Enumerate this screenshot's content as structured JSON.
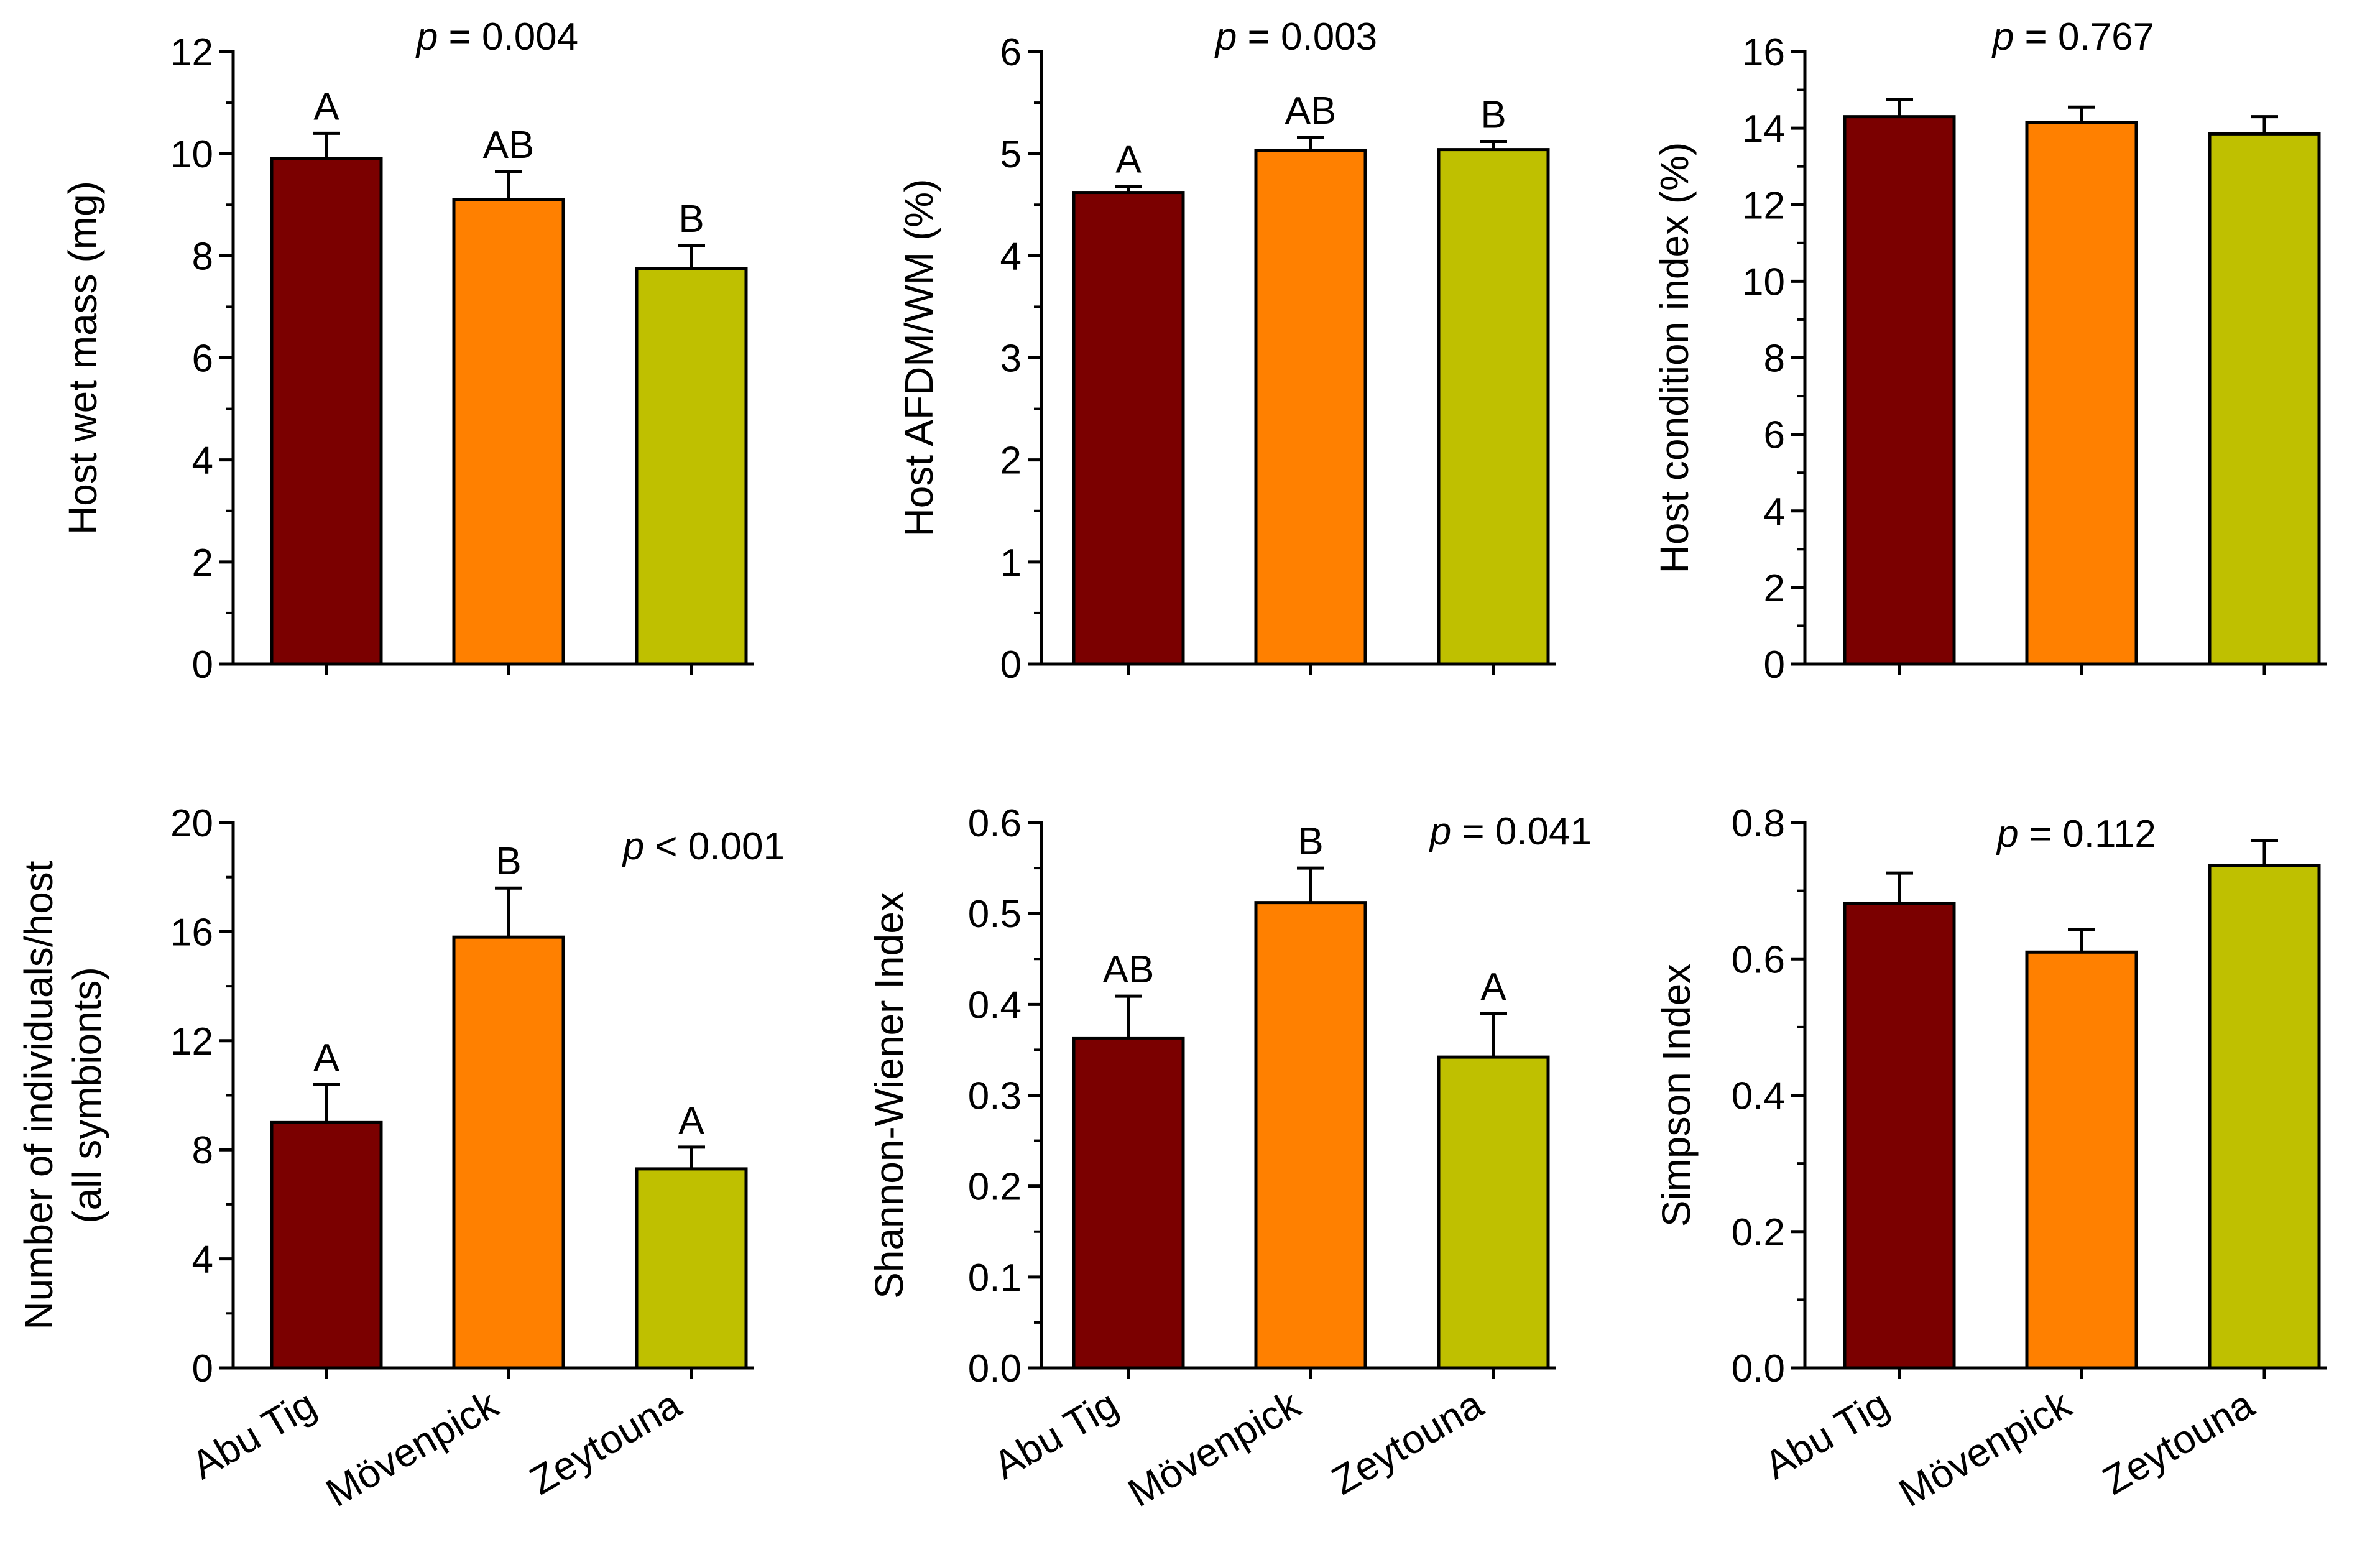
{
  "figure_title": "",
  "colors": {
    "Abu Tig": "#7b0000",
    "Mövenpick": "#ff8000",
    "Zeytouna": "#bfc000",
    "stroke": "#000000"
  },
  "chart_data": [
    {
      "type": "bar",
      "title": "",
      "categories": [
        "Abu Tig",
        "Mövenpick",
        "Zeytouna"
      ],
      "values": [
        9.9,
        9.1,
        7.75
      ],
      "errors": [
        0.5,
        0.55,
        0.45
      ],
      "letters": [
        "A",
        "AB",
        "B"
      ],
      "p_label": "p",
      "p_text": " = 0.004",
      "xlabel": "",
      "ylabel": [
        "Host wet mass (mg)"
      ],
      "ylim": [
        0,
        12
      ],
      "major_ticks": [
        0,
        2,
        4,
        6,
        8,
        10,
        12
      ],
      "minor_step": 1,
      "tick_labels": [
        "0",
        "2",
        "4",
        "6",
        "8",
        "10",
        "12"
      ],
      "show_category_labels": false
    },
    {
      "type": "bar",
      "title": "",
      "categories": [
        "Abu Tig",
        "Mövenpick",
        "Zeytouna"
      ],
      "values": [
        4.62,
        5.03,
        5.04
      ],
      "errors": [
        0.06,
        0.13,
        0.08
      ],
      "letters": [
        "A",
        "AB",
        "B"
      ],
      "p_label": "p",
      "p_text": " = 0.003",
      "xlabel": "",
      "ylabel": [
        "Host AFDM/WM (%)"
      ],
      "ylim": [
        0,
        6
      ],
      "major_ticks": [
        0,
        1,
        2,
        3,
        4,
        5,
        6
      ],
      "minor_step": 0.5,
      "tick_labels": [
        "0",
        "1",
        "2",
        "3",
        "4",
        "5",
        "6"
      ],
      "show_category_labels": false
    },
    {
      "type": "bar",
      "title": "",
      "categories": [
        "Abu Tig",
        "Mövenpick",
        "Zeytouna"
      ],
      "values": [
        14.3,
        14.15,
        13.85
      ],
      "errors": [
        0.45,
        0.4,
        0.45
      ],
      "letters": [
        "",
        "",
        ""
      ],
      "p_label": "p",
      "p_text": " = 0.767",
      "xlabel": "",
      "ylabel": [
        "Host condition index (%)"
      ],
      "ylim": [
        0,
        16
      ],
      "major_ticks": [
        0,
        2,
        4,
        6,
        8,
        10,
        12,
        14,
        16
      ],
      "minor_step": 1,
      "tick_labels": [
        "0",
        "2",
        "4",
        "6",
        "8",
        "10",
        "12",
        "14",
        "16"
      ],
      "show_category_labels": false
    },
    {
      "type": "bar",
      "title": "",
      "categories": [
        "Abu Tig",
        "Mövenpick",
        "Zeytouna"
      ],
      "values": [
        9.0,
        15.8,
        7.3
      ],
      "errors": [
        1.4,
        1.8,
        0.8
      ],
      "letters": [
        "A",
        "B",
        "A"
      ],
      "p_label": "p",
      "p_text": " < 0.001",
      "xlabel": "",
      "ylabel": [
        "Number of individuals/host",
        "(all symbionts)"
      ],
      "ylim": [
        0,
        20
      ],
      "major_ticks": [
        0,
        4,
        8,
        12,
        16,
        20
      ],
      "minor_step": 2,
      "tick_labels": [
        "0",
        "4",
        "8",
        "12",
        "16",
        "20"
      ],
      "show_category_labels": true
    },
    {
      "type": "bar",
      "title": "",
      "categories": [
        "Abu Tig",
        "Mövenpick",
        "Zeytouna"
      ],
      "values": [
        0.363,
        0.512,
        0.342
      ],
      "errors": [
        0.046,
        0.038,
        0.048
      ],
      "letters": [
        "AB",
        "B",
        "A"
      ],
      "p_label": "p",
      "p_text": " = 0.041",
      "xlabel": "",
      "ylabel": [
        "Shannon-Wiener Index"
      ],
      "ylim": [
        0,
        0.6
      ],
      "major_ticks": [
        0,
        0.1,
        0.2,
        0.3,
        0.4,
        0.5,
        0.6
      ],
      "minor_step": 0.05,
      "tick_labels": [
        "0.0",
        "0.1",
        "0.2",
        "0.3",
        "0.4",
        "0.5",
        "0.6"
      ],
      "show_category_labels": true
    },
    {
      "type": "bar",
      "title": "",
      "categories": [
        "Abu Tig",
        "Mövenpick",
        "Zeytouna"
      ],
      "values": [
        0.681,
        0.61,
        0.737
      ],
      "errors": [
        0.045,
        0.033,
        0.037
      ],
      "letters": [
        "",
        "",
        ""
      ],
      "p_label": "p",
      "p_text": " = 0.112",
      "xlabel": "",
      "ylabel": [
        "Simpson Index"
      ],
      "ylim": [
        0,
        0.8
      ],
      "major_ticks": [
        0,
        0.2,
        0.4,
        0.6,
        0.8
      ],
      "minor_step": 0.1,
      "tick_labels": [
        "0.0",
        "0.2",
        "0.4",
        "0.6",
        "0.8"
      ],
      "show_category_labels": true
    }
  ]
}
